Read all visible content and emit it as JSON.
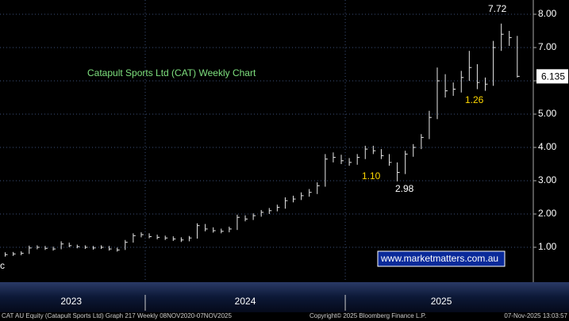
{
  "chart_data": {
    "type": "ohlc",
    "title": "Catapult Sports Ltd (CAT) Weekly Chart",
    "x": [
      2023.3,
      2023.34,
      2023.38,
      2023.42,
      2023.46,
      2023.5,
      2023.54,
      2023.58,
      2023.62,
      2023.66,
      2023.7,
      2023.74,
      2023.78,
      2023.82,
      2023.86,
      2023.9,
      2023.94,
      2023.98,
      2024.02,
      2024.06,
      2024.1,
      2024.14,
      2024.18,
      2024.22,
      2024.26,
      2024.3,
      2024.34,
      2024.38,
      2024.42,
      2024.46,
      2024.5,
      2024.54,
      2024.58,
      2024.62,
      2024.66,
      2024.7,
      2024.74,
      2024.78,
      2024.82,
      2024.86,
      2024.9,
      2024.94,
      2024.98,
      2025.02,
      2025.06,
      2025.1,
      2025.14,
      2025.18,
      2025.22,
      2025.26,
      2025.3,
      2025.34,
      2025.38,
      2025.42,
      2025.46,
      2025.5,
      2025.54,
      2025.58,
      2025.62,
      2025.66,
      2025.7,
      2025.74,
      2025.78,
      2025.82,
      2025.86
    ],
    "series": [
      {
        "name": "high",
        "color": "#e8e8e8",
        "values": [
          0.85,
          0.86,
          0.88,
          1.05,
          1.06,
          1.04,
          1.02,
          1.18,
          1.14,
          1.08,
          1.06,
          1.04,
          1.06,
          1.04,
          0.99,
          1.22,
          1.42,
          1.45,
          1.42,
          1.38,
          1.35,
          1.33,
          1.3,
          1.34,
          1.72,
          1.7,
          1.6,
          1.56,
          1.62,
          1.98,
          1.96,
          2.02,
          2.12,
          2.18,
          2.28,
          2.5,
          2.55,
          2.65,
          2.75,
          2.95,
          3.8,
          3.85,
          3.78,
          3.68,
          3.8,
          4.05,
          4.05,
          3.95,
          3.8,
          3.55,
          3.9,
          4.1,
          4.4,
          5.1,
          6.4,
          6.2,
          5.95,
          6.3,
          6.9,
          6.5,
          6.1,
          7.2,
          7.72,
          7.5,
          7.35
        ]
      },
      {
        "name": "low",
        "color": "#e8e8e8",
        "values": [
          0.72,
          0.74,
          0.76,
          0.8,
          0.94,
          0.92,
          0.9,
          0.94,
          1.0,
          0.97,
          0.95,
          0.93,
          0.95,
          0.9,
          0.87,
          0.92,
          1.14,
          1.3,
          1.27,
          1.24,
          1.22,
          1.19,
          1.16,
          1.18,
          1.26,
          1.48,
          1.44,
          1.42,
          1.45,
          1.52,
          1.78,
          1.82,
          1.92,
          2.0,
          2.08,
          2.16,
          2.35,
          2.42,
          2.52,
          2.6,
          2.82,
          3.55,
          3.5,
          3.45,
          3.48,
          3.65,
          3.8,
          3.65,
          3.45,
          2.98,
          3.2,
          3.72,
          3.95,
          4.25,
          4.85,
          5.5,
          5.55,
          5.65,
          6.0,
          5.75,
          5.7,
          5.85,
          6.9,
          7.05,
          6.1
        ]
      },
      {
        "name": "close",
        "color": "#e8e8e8",
        "values": [
          0.78,
          0.8,
          0.82,
          0.98,
          1.0,
          0.97,
          0.95,
          1.1,
          1.05,
          1.02,
          1.0,
          0.98,
          1.0,
          0.95,
          0.92,
          1.15,
          1.35,
          1.38,
          1.32,
          1.3,
          1.28,
          1.25,
          1.22,
          1.28,
          1.65,
          1.55,
          1.5,
          1.48,
          1.55,
          1.9,
          1.85,
          1.95,
          2.05,
          2.1,
          2.2,
          2.4,
          2.45,
          2.55,
          2.65,
          2.85,
          3.65,
          3.7,
          3.6,
          3.55,
          3.7,
          3.95,
          3.9,
          3.75,
          3.55,
          3.25,
          3.8,
          4.0,
          4.3,
          4.9,
          6.0,
          5.7,
          5.75,
          6.1,
          6.4,
          5.95,
          5.9,
          7.0,
          7.4,
          7.3,
          6.135
        ]
      }
    ],
    "last_price": {
      "value": 6.135,
      "label": "6.135"
    },
    "xlim": [
      2023.274,
      2025.94
    ],
    "xticks": [
      {
        "value": 2023.63,
        "label": "2023"
      },
      {
        "value": 2024.5,
        "label": "2024"
      },
      {
        "value": 2025.48,
        "label": "2025"
      }
    ],
    "year_separators": [
      2024,
      2025
    ],
    "ylim": [
      0,
      8.4286
    ],
    "yticks": [
      {
        "value": 1,
        "label": "1.00"
      },
      {
        "value": 2,
        "label": "2.00"
      },
      {
        "value": 3,
        "label": "3.00"
      },
      {
        "value": 4,
        "label": "4.00"
      },
      {
        "value": 5,
        "label": "5.00"
      },
      {
        "value": 6,
        "label": "6.00"
      },
      {
        "value": 7,
        "label": "7.00"
      },
      {
        "value": 8,
        "label": "8.00"
      }
    ],
    "grid": true,
    "annotations": [
      "7.72",
      "1.26",
      "1.10",
      "2.98",
      "c"
    ],
    "watermark": "www.marketmatters.com.au",
    "footer": {
      "left": "CAT AU Equity (Catapult Sports Ltd) Graph 217 Weekly 08NOV2020-07NOV2025",
      "center": "Copyright© 2025 Bloomberg Finance L.P.",
      "right": "07-Nov-2025 13:03:57"
    }
  }
}
